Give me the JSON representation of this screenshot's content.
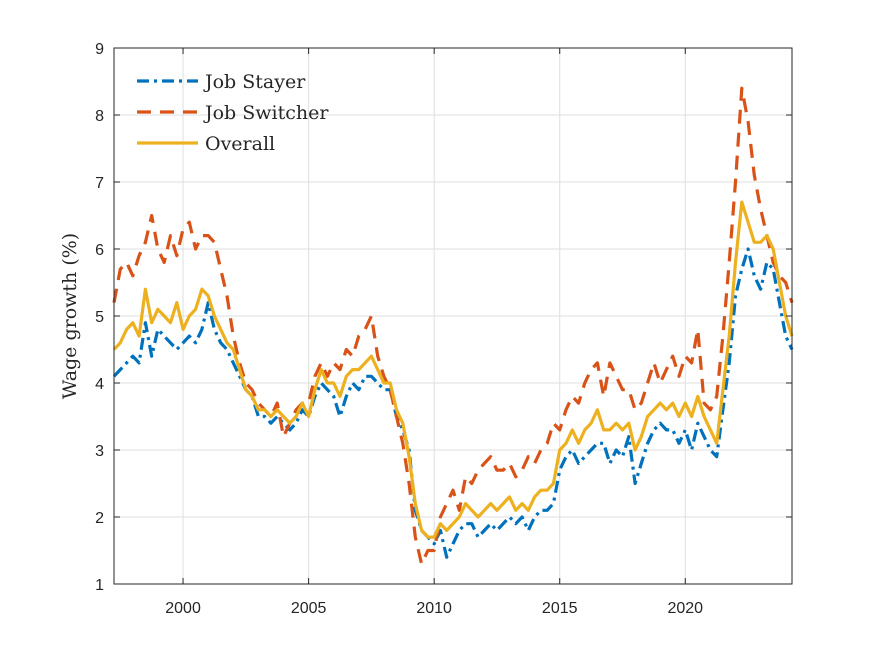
{
  "chart_data": {
    "type": "line",
    "title": "",
    "xlabel": "",
    "ylabel": "Wage growth (%)",
    "xlim": [
      1997.25,
      2024.25
    ],
    "ylim": [
      1,
      9
    ],
    "xticks": [
      2000,
      2005,
      2010,
      2015,
      2020
    ],
    "yticks": [
      1,
      2,
      3,
      4,
      5,
      6,
      7,
      8,
      9
    ],
    "grid": true,
    "legend_position": "top-left",
    "series": [
      {
        "name": "Job Stayer",
        "color": "#0072BD",
        "dash": "dash-dot",
        "x": [
          1997.25,
          1997.5,
          1997.75,
          1998.0,
          1998.25,
          1998.5,
          1998.75,
          1999.0,
          1999.25,
          1999.5,
          1999.75,
          2000.0,
          2000.25,
          2000.5,
          2000.75,
          2001.0,
          2001.25,
          2001.5,
          2001.75,
          2002.0,
          2002.25,
          2002.5,
          2002.75,
          2003.0,
          2003.25,
          2003.5,
          2003.75,
          2004.0,
          2004.25,
          2004.5,
          2004.75,
          2005.0,
          2005.25,
          2005.5,
          2005.75,
          2006.0,
          2006.25,
          2006.5,
          2006.75,
          2007.0,
          2007.25,
          2007.5,
          2007.75,
          2008.0,
          2008.25,
          2008.5,
          2008.75,
          2009.0,
          2009.25,
          2009.5,
          2009.75,
          2010.0,
          2010.25,
          2010.5,
          2010.75,
          2011.0,
          2011.25,
          2011.5,
          2011.75,
          2012.0,
          2012.25,
          2012.5,
          2012.75,
          2013.0,
          2013.25,
          2013.5,
          2013.75,
          2014.0,
          2014.25,
          2014.5,
          2014.75,
          2015.0,
          2015.25,
          2015.5,
          2015.75,
          2016.0,
          2016.25,
          2016.5,
          2016.75,
          2017.0,
          2017.25,
          2017.5,
          2017.75,
          2018.0,
          2018.25,
          2018.5,
          2018.75,
          2019.0,
          2019.25,
          2019.5,
          2019.75,
          2020.0,
          2020.25,
          2020.5,
          2020.75,
          2021.0,
          2021.25,
          2021.5,
          2021.75,
          2022.0,
          2022.25,
          2022.5,
          2022.75,
          2023.0,
          2023.25,
          2023.5,
          2023.75,
          2024.0,
          2024.25
        ],
        "y": [
          4.1,
          4.2,
          4.3,
          4.4,
          4.3,
          4.9,
          4.4,
          4.8,
          4.7,
          4.6,
          4.5,
          4.6,
          4.7,
          4.6,
          4.8,
          5.2,
          4.8,
          4.6,
          4.5,
          4.3,
          4.1,
          3.9,
          3.8,
          3.5,
          3.5,
          3.4,
          3.5,
          3.4,
          3.3,
          3.4,
          3.6,
          3.5,
          3.8,
          4.0,
          3.9,
          3.8,
          3.5,
          3.8,
          4.0,
          3.9,
          4.1,
          4.1,
          4.0,
          3.9,
          3.9,
          3.5,
          3.3,
          3.0,
          2.1,
          1.8,
          1.7,
          1.6,
          1.8,
          1.4,
          1.6,
          1.8,
          1.9,
          1.9,
          1.7,
          1.8,
          1.9,
          1.8,
          1.9,
          2.0,
          1.9,
          2.0,
          1.8,
          2.0,
          2.1,
          2.1,
          2.2,
          2.7,
          2.9,
          3.0,
          2.8,
          2.9,
          3.0,
          3.1,
          3.1,
          2.8,
          3.0,
          2.9,
          3.2,
          2.5,
          2.8,
          3.1,
          3.3,
          3.4,
          3.3,
          3.3,
          3.1,
          3.3,
          3.0,
          3.4,
          3.2,
          3.0,
          2.9,
          3.6,
          4.3,
          5.3,
          5.7,
          6.0,
          5.6,
          5.4,
          5.8,
          5.7,
          5.2,
          4.7,
          4.5
        ]
      },
      {
        "name": "Job Switcher",
        "color": "#D95319",
        "dash": "dash",
        "x": [
          1997.25,
          1997.5,
          1997.75,
          1998.0,
          1998.25,
          1998.5,
          1998.75,
          1999.0,
          1999.25,
          1999.5,
          1999.75,
          2000.0,
          2000.25,
          2000.5,
          2000.75,
          2001.0,
          2001.25,
          2001.5,
          2001.75,
          2002.0,
          2002.25,
          2002.5,
          2002.75,
          2003.0,
          2003.25,
          2003.5,
          2003.75,
          2004.0,
          2004.25,
          2004.5,
          2004.75,
          2005.0,
          2005.25,
          2005.5,
          2005.75,
          2006.0,
          2006.25,
          2006.5,
          2006.75,
          2007.0,
          2007.25,
          2007.5,
          2007.75,
          2008.0,
          2008.25,
          2008.5,
          2008.75,
          2009.0,
          2009.25,
          2009.5,
          2009.75,
          2010.0,
          2010.25,
          2010.5,
          2010.75,
          2011.0,
          2011.25,
          2011.5,
          2011.75,
          2012.0,
          2012.25,
          2012.5,
          2012.75,
          2013.0,
          2013.25,
          2013.5,
          2013.75,
          2014.0,
          2014.25,
          2014.5,
          2014.75,
          2015.0,
          2015.25,
          2015.5,
          2015.75,
          2016.0,
          2016.25,
          2016.5,
          2016.75,
          2017.0,
          2017.25,
          2017.5,
          2017.75,
          2018.0,
          2018.25,
          2018.5,
          2018.75,
          2019.0,
          2019.25,
          2019.5,
          2019.75,
          2020.0,
          2020.25,
          2020.5,
          2020.75,
          2021.0,
          2021.25,
          2021.5,
          2021.75,
          2022.0,
          2022.25,
          2022.5,
          2022.75,
          2023.0,
          2023.25,
          2023.5,
          2023.75,
          2024.0,
          2024.25
        ],
        "y": [
          5.2,
          5.7,
          5.8,
          5.6,
          5.9,
          6.1,
          6.5,
          6.0,
          5.8,
          6.2,
          5.9,
          6.3,
          6.4,
          6.0,
          6.2,
          6.2,
          6.1,
          5.7,
          5.3,
          4.7,
          4.3,
          4.0,
          3.9,
          3.7,
          3.6,
          3.5,
          3.7,
          3.2,
          3.4,
          3.6,
          3.7,
          3.7,
          4.1,
          4.3,
          4.1,
          4.3,
          4.2,
          4.5,
          4.4,
          4.7,
          4.8,
          5.0,
          4.4,
          4.1,
          3.9,
          3.5,
          3.1,
          2.5,
          1.7,
          1.3,
          1.5,
          1.5,
          2.0,
          2.2,
          2.4,
          2.1,
          2.6,
          2.5,
          2.7,
          2.8,
          2.9,
          2.7,
          2.7,
          2.8,
          2.6,
          2.7,
          2.9,
          2.8,
          3.0,
          3.1,
          3.4,
          3.3,
          3.6,
          3.8,
          3.7,
          4.0,
          4.2,
          4.3,
          3.8,
          4.3,
          4.1,
          3.9,
          3.9,
          3.6,
          3.7,
          4.0,
          4.3,
          4.0,
          4.2,
          4.4,
          4.1,
          4.4,
          4.3,
          4.8,
          3.7,
          3.6,
          3.8,
          4.7,
          5.8,
          7.0,
          8.4,
          7.9,
          7.1,
          6.6,
          6.2,
          5.8,
          5.6,
          5.5,
          5.2
        ]
      },
      {
        "name": "Overall",
        "color": "#EDB120",
        "dash": "solid",
        "x": [
          1997.25,
          1997.5,
          1997.75,
          1998.0,
          1998.25,
          1998.5,
          1998.75,
          1999.0,
          1999.25,
          1999.5,
          1999.75,
          2000.0,
          2000.25,
          2000.5,
          2000.75,
          2001.0,
          2001.25,
          2001.5,
          2001.75,
          2002.0,
          2002.25,
          2002.5,
          2002.75,
          2003.0,
          2003.25,
          2003.5,
          2003.75,
          2004.0,
          2004.25,
          2004.5,
          2004.75,
          2005.0,
          2005.25,
          2005.5,
          2005.75,
          2006.0,
          2006.25,
          2006.5,
          2006.75,
          2007.0,
          2007.25,
          2007.5,
          2007.75,
          2008.0,
          2008.25,
          2008.5,
          2008.75,
          2009.0,
          2009.25,
          2009.5,
          2009.75,
          2010.0,
          2010.25,
          2010.5,
          2010.75,
          2011.0,
          2011.25,
          2011.5,
          2011.75,
          2012.0,
          2012.25,
          2012.5,
          2012.75,
          2013.0,
          2013.25,
          2013.5,
          2013.75,
          2014.0,
          2014.25,
          2014.5,
          2014.75,
          2015.0,
          2015.25,
          2015.5,
          2015.75,
          2016.0,
          2016.25,
          2016.5,
          2016.75,
          2017.0,
          2017.25,
          2017.5,
          2017.75,
          2018.0,
          2018.25,
          2018.5,
          2018.75,
          2019.0,
          2019.25,
          2019.5,
          2019.75,
          2020.0,
          2020.25,
          2020.5,
          2020.75,
          2021.0,
          2021.25,
          2021.5,
          2021.75,
          2022.0,
          2022.25,
          2022.5,
          2022.75,
          2023.0,
          2023.25,
          2023.5,
          2023.75,
          2024.0,
          2024.25
        ],
        "y": [
          4.5,
          4.6,
          4.8,
          4.9,
          4.7,
          5.4,
          4.9,
          5.1,
          5.0,
          4.9,
          5.2,
          4.8,
          5.0,
          5.1,
          5.4,
          5.3,
          5.0,
          4.8,
          4.6,
          4.5,
          4.2,
          3.9,
          3.8,
          3.6,
          3.6,
          3.5,
          3.6,
          3.5,
          3.4,
          3.5,
          3.7,
          3.5,
          3.9,
          4.2,
          4.0,
          4.0,
          3.8,
          4.1,
          4.2,
          4.2,
          4.3,
          4.4,
          4.2,
          4.0,
          4.0,
          3.6,
          3.4,
          2.9,
          2.2,
          1.8,
          1.7,
          1.7,
          1.9,
          1.8,
          1.9,
          2.0,
          2.2,
          2.1,
          2.0,
          2.1,
          2.2,
          2.1,
          2.2,
          2.3,
          2.1,
          2.2,
          2.1,
          2.3,
          2.4,
          2.4,
          2.5,
          3.0,
          3.1,
          3.3,
          3.1,
          3.3,
          3.4,
          3.6,
          3.3,
          3.3,
          3.4,
          3.3,
          3.4,
          3.0,
          3.2,
          3.5,
          3.6,
          3.7,
          3.6,
          3.7,
          3.5,
          3.7,
          3.5,
          3.8,
          3.5,
          3.3,
          3.1,
          3.9,
          4.7,
          5.8,
          6.7,
          6.4,
          6.1,
          6.1,
          6.2,
          6.0,
          5.5,
          5.0,
          4.7
        ]
      }
    ]
  }
}
